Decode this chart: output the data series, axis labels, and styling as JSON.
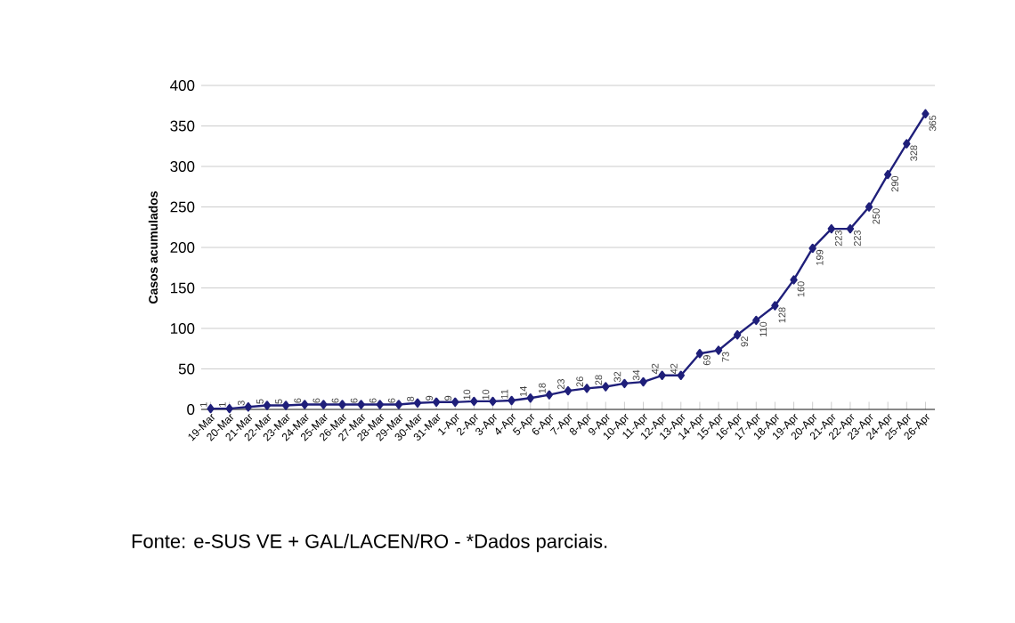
{
  "chart_data": {
    "type": "line",
    "ylabel": "Casos acumulados",
    "categories": [
      "19-Mar",
      "20-Mar",
      "21-Mar",
      "22-Mar",
      "23-Mar",
      "24-Mar",
      "25-Mar",
      "26-Mar",
      "27-Mar",
      "28-Mar",
      "29-Mar",
      "30-Mar",
      "31-Mar",
      "1-Apr",
      "2-Apr",
      "3-Apr",
      "4-Apr",
      "5-Apr",
      "6-Apr",
      "7-Apr",
      "8-Apr",
      "9-Apr",
      "10-Apr",
      "11-Apr",
      "12-Apr",
      "13-Apr",
      "14-Apr",
      "15-Apr",
      "16-Apr",
      "17-Apr",
      "18-Apr",
      "19-Apr",
      "20-Apr",
      "21-Apr",
      "22-Apr",
      "23-Apr",
      "24-Apr",
      "25-Apr",
      "26-Apr"
    ],
    "values": [
      1,
      1,
      3,
      5,
      5,
      6,
      6,
      6,
      6,
      6,
      6,
      8,
      9,
      9,
      10,
      10,
      11,
      14,
      18,
      23,
      26,
      28,
      32,
      34,
      42,
      42,
      69,
      73,
      92,
      110,
      128,
      160,
      199,
      223,
      223,
      250,
      290,
      328,
      365
    ],
    "color": "#1f1f7a",
    "marker": "diamond",
    "line_style": "solid",
    "data_labels": true,
    "grid": "y",
    "ylim": [
      0,
      400
    ],
    "yticks": [
      0,
      50,
      100,
      150,
      200,
      250,
      300,
      350,
      400
    ],
    "annotations": [
      "Fonte: e-SUS VE + GAL/LACEN/RO - *Dados parciais."
    ]
  }
}
